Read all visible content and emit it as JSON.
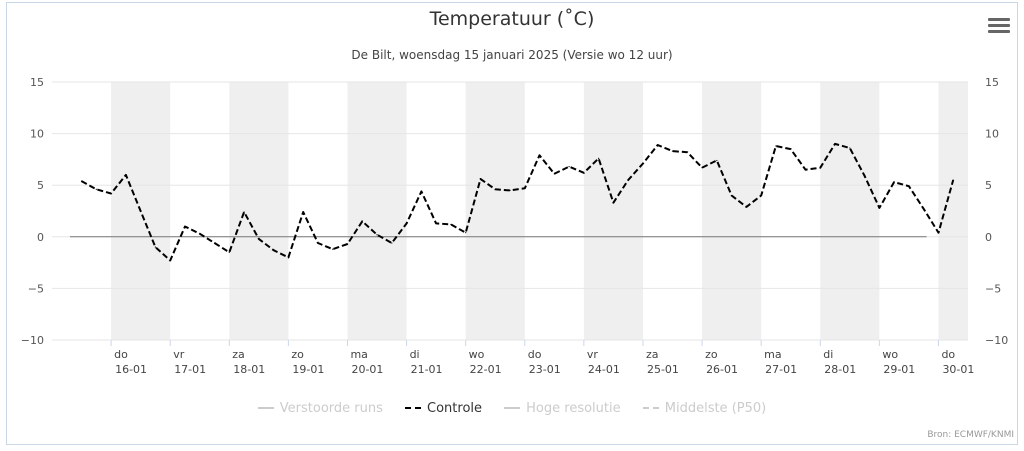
{
  "title": "Temperatuur (˚C)",
  "subtitle": "De Bilt, woensdag 15 januari 2025 (Versie wo 12 uur)",
  "credits": "Bron: ECMWF/KNMI",
  "legend": [
    {
      "label": "Verstoorde runs",
      "active": false,
      "style": "solid"
    },
    {
      "label": "Controle",
      "active": true,
      "style": "dashed"
    },
    {
      "label": "Hoge resolutie",
      "active": false,
      "style": "solid"
    },
    {
      "label": "Middelste (P50)",
      "active": false,
      "style": "dashed"
    }
  ],
  "chart_data": {
    "type": "line",
    "title": "Temperatuur (˚C)",
    "subtitle": "De Bilt, woensdag 15 januari 2025 (Versie wo 12 uur)",
    "ylim": [
      -10,
      15
    ],
    "yticks": [
      15,
      10,
      5,
      0,
      -5,
      -10
    ],
    "y_axis_both_sides": true,
    "grid": true,
    "x_range": [
      0,
      15.5
    ],
    "day_ticks": [
      {
        "x": 1,
        "day": "do",
        "date": "16-01"
      },
      {
        "x": 2,
        "day": "vr",
        "date": "17-01"
      },
      {
        "x": 3,
        "day": "za",
        "date": "18-01"
      },
      {
        "x": 4,
        "day": "zo",
        "date": "19-01"
      },
      {
        "x": 5,
        "day": "ma",
        "date": "20-01"
      },
      {
        "x": 6,
        "day": "di",
        "date": "21-01"
      },
      {
        "x": 7,
        "day": "wo",
        "date": "22-01"
      },
      {
        "x": 8,
        "day": "do",
        "date": "23-01"
      },
      {
        "x": 9,
        "day": "vr",
        "date": "24-01"
      },
      {
        "x": 10,
        "day": "za",
        "date": "25-01"
      },
      {
        "x": 11,
        "day": "zo",
        "date": "26-01"
      },
      {
        "x": 12,
        "day": "ma",
        "date": "27-01"
      },
      {
        "x": 13,
        "day": "di",
        "date": "28-01"
      },
      {
        "x": 14,
        "day": "wo",
        "date": "29-01"
      },
      {
        "x": 15,
        "day": "do",
        "date": "30-01"
      }
    ],
    "shaded_days": [
      1,
      3,
      5,
      7,
      9,
      11,
      13,
      15
    ],
    "zero_line": {
      "x_start": 0,
      "x_end": 14.8,
      "value": 0
    },
    "legend_position": "bottom",
    "series": [
      {
        "name": "Controle",
        "color": "#000000",
        "dash": true,
        "points": [
          [
            0.5,
            5.4
          ],
          [
            0.75,
            4.6
          ],
          [
            1.0,
            4.2
          ],
          [
            1.25,
            6.0
          ],
          [
            1.5,
            2.5
          ],
          [
            1.75,
            -1.0
          ],
          [
            2.0,
            -2.3
          ],
          [
            2.25,
            1.0
          ],
          [
            2.5,
            0.3
          ],
          [
            2.75,
            -0.6
          ],
          [
            3.0,
            -1.5
          ],
          [
            3.25,
            2.4
          ],
          [
            3.5,
            -0.2
          ],
          [
            3.75,
            -1.3
          ],
          [
            4.0,
            -2.0
          ],
          [
            4.25,
            2.4
          ],
          [
            4.5,
            -0.6
          ],
          [
            4.75,
            -1.2
          ],
          [
            5.0,
            -0.7
          ],
          [
            5.25,
            1.5
          ],
          [
            5.5,
            0.2
          ],
          [
            5.75,
            -0.6
          ],
          [
            6.0,
            1.3
          ],
          [
            6.25,
            4.4
          ],
          [
            6.5,
            1.3
          ],
          [
            6.75,
            1.2
          ],
          [
            7.0,
            0.4
          ],
          [
            7.25,
            5.6
          ],
          [
            7.5,
            4.6
          ],
          [
            7.75,
            4.5
          ],
          [
            8.0,
            4.7
          ],
          [
            8.25,
            7.9
          ],
          [
            8.5,
            6.1
          ],
          [
            8.75,
            6.8
          ],
          [
            9.0,
            6.2
          ],
          [
            9.25,
            7.6
          ],
          [
            9.5,
            3.3
          ],
          [
            9.75,
            5.5
          ],
          [
            10.0,
            7.1
          ],
          [
            10.25,
            8.9
          ],
          [
            10.5,
            8.3
          ],
          [
            10.75,
            8.2
          ],
          [
            11.0,
            6.7
          ],
          [
            11.25,
            7.4
          ],
          [
            11.5,
            4.0
          ],
          [
            11.75,
            2.9
          ],
          [
            12.0,
            4.0
          ],
          [
            12.25,
            8.8
          ],
          [
            12.5,
            8.5
          ],
          [
            12.75,
            6.5
          ],
          [
            13.0,
            6.7
          ],
          [
            13.25,
            9.0
          ],
          [
            13.5,
            8.6
          ],
          [
            13.75,
            5.9
          ],
          [
            14.0,
            2.8
          ],
          [
            14.25,
            5.3
          ],
          [
            14.5,
            4.9
          ],
          [
            14.75,
            2.7
          ],
          [
            15.0,
            0.4
          ],
          [
            15.25,
            5.5
          ]
        ]
      }
    ]
  }
}
